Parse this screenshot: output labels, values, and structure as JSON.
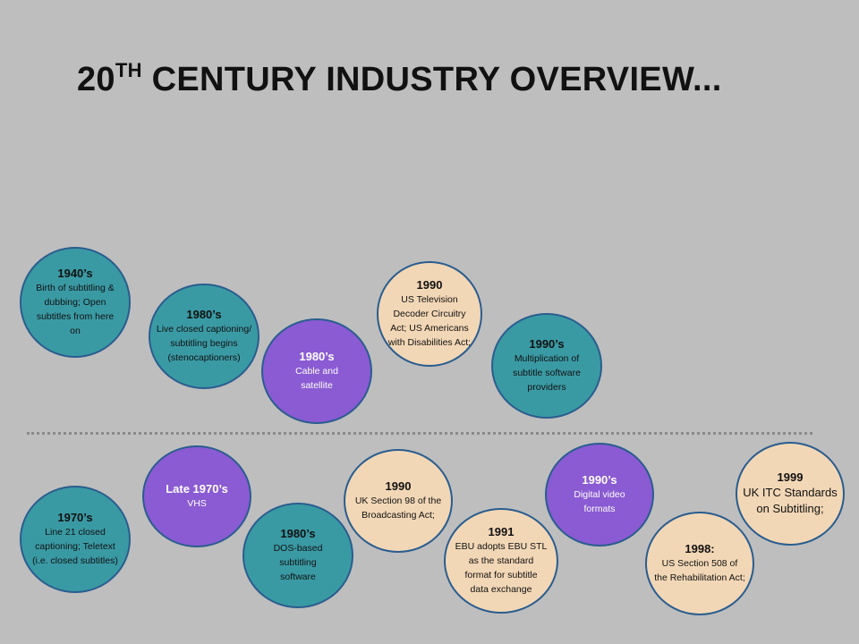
{
  "title": {
    "main": "20",
    "sup": "TH",
    "rest": " CENTURY INDUSTRY OVERVIEW..."
  },
  "top_row": [
    {
      "year": "1940’s",
      "text": "Birth of subtitling & dubbing; Open subtitles from here on"
    },
    {
      "year": "1980’s",
      "text": "Live closed captioning/ subtitling begins (stenocaptioners)"
    },
    {
      "year": "1980’s",
      "text": "Cable and satellite"
    },
    {
      "year": "1990",
      "text": "US Television Decoder Circuitry Act; US Americans with Disabilities Act;"
    },
    {
      "year": "1990’s",
      "text": "Multiplication of subtitle software providers"
    }
  ],
  "bottom_row": [
    {
      "year": "1970’s",
      "text": "Line 21 closed captioning; Teletext (i.e. closed subtitles)"
    },
    {
      "year": "Late 1970’s",
      "text": "VHS"
    },
    {
      "year": "1980’s",
      "text": "DOS-based subtitling software"
    },
    {
      "year": "1990",
      "text": "UK Section 98 of the Broadcasting Act;"
    },
    {
      "year": "1991",
      "text": "EBU adopts EBU STL as the standard format for subtitle data exchange"
    },
    {
      "year": "1990’s",
      "text": "Digital video formats"
    },
    {
      "year": "1998:",
      "text": "US Section 508 of the Rehabilitation Act;"
    },
    {
      "year": "1999",
      "text": "UK ITC Standards on Subtitling;"
    }
  ],
  "colors": {
    "background": "#bebebe",
    "teal": "#3a9aa4",
    "purple": "#8a5bd3",
    "tan": "#f2d7b6",
    "outline": "#2a5d8f"
  }
}
